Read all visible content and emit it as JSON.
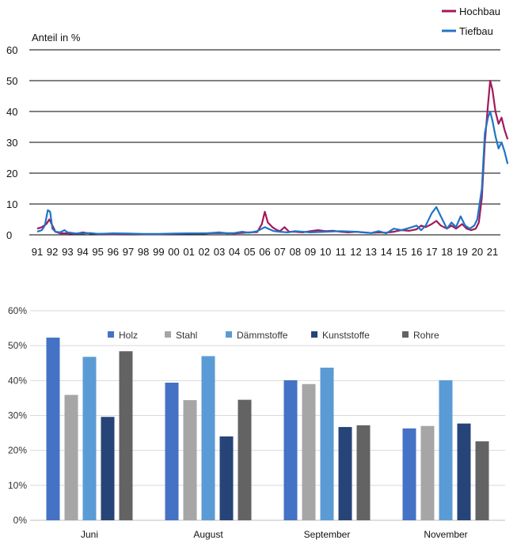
{
  "chart_data": [
    {
      "type": "line",
      "ylabel": "Anteil in %",
      "ylim": [
        0,
        60
      ],
      "yticks": [
        0,
        10,
        20,
        30,
        40,
        50,
        60
      ],
      "xticks": [
        "91",
        "92",
        "93",
        "94",
        "95",
        "96",
        "97",
        "98",
        "99",
        "00",
        "01",
        "02",
        "03",
        "04",
        "05",
        "06",
        "07",
        "08",
        "09",
        "10",
        "11",
        "12",
        "13",
        "14",
        "15",
        "16",
        "17",
        "18",
        "19",
        "20",
        "21"
      ],
      "grid": true,
      "legend_position": "top-right",
      "series": [
        {
          "name": "Hochbau",
          "color": "#a3195b",
          "points": [
            [
              0,
              2
            ],
            [
              0.3,
              2.5
            ],
            [
              0.6,
              3.5
            ],
            [
              0.8,
              5
            ],
            [
              1,
              3
            ],
            [
              1.2,
              1
            ],
            [
              1.5,
              0.5
            ],
            [
              2,
              0.5
            ],
            [
              2.5,
              0.3
            ],
            [
              3,
              0.8
            ],
            [
              3.5,
              0.4
            ],
            [
              4,
              0.3
            ],
            [
              5,
              0.2
            ],
            [
              6,
              0.3
            ],
            [
              7,
              0.2
            ],
            [
              8,
              0.2
            ],
            [
              9,
              0.3
            ],
            [
              10,
              0.4
            ],
            [
              11,
              0.5
            ],
            [
              12,
              0.6
            ],
            [
              13,
              0.5
            ],
            [
              14,
              0.8
            ],
            [
              14.5,
              0.9
            ],
            [
              14.8,
              3.5
            ],
            [
              15,
              7.5
            ],
            [
              15.2,
              4
            ],
            [
              15.5,
              2.5
            ],
            [
              15.8,
              1.5
            ],
            [
              16,
              1.2
            ],
            [
              16.3,
              2.5
            ],
            [
              16.6,
              1
            ],
            [
              17,
              1
            ],
            [
              17.5,
              0.8
            ],
            [
              18,
              1.2
            ],
            [
              18.5,
              1.5
            ],
            [
              19,
              1.2
            ],
            [
              19.5,
              1.3
            ],
            [
              20,
              1
            ],
            [
              20.5,
              0.8
            ],
            [
              21,
              1
            ],
            [
              21.5,
              0.8
            ],
            [
              22,
              0.6
            ],
            [
              22.5,
              0.8
            ],
            [
              23,
              0.7
            ],
            [
              23.5,
              1
            ],
            [
              24,
              1.5
            ],
            [
              24.5,
              1.3
            ],
            [
              25,
              1.8
            ],
            [
              25.3,
              3
            ],
            [
              25.6,
              2.5
            ],
            [
              26,
              3.5
            ],
            [
              26.3,
              4.5
            ],
            [
              26.6,
              3
            ],
            [
              27,
              2
            ],
            [
              27.3,
              3
            ],
            [
              27.6,
              2
            ],
            [
              28,
              3.5
            ],
            [
              28.3,
              2
            ],
            [
              28.6,
              1.5
            ],
            [
              28.9,
              2
            ],
            [
              29.1,
              4
            ],
            [
              29.3,
              12
            ],
            [
              29.5,
              30
            ],
            [
              29.7,
              42
            ],
            [
              29.85,
              50
            ],
            [
              30,
              47
            ],
            [
              30.2,
              40
            ],
            [
              30.4,
              36
            ],
            [
              30.6,
              38
            ],
            [
              30.8,
              34
            ],
            [
              31,
              31
            ]
          ]
        },
        {
          "name": "Tiefbau",
          "color": "#1f75c7",
          "points": [
            [
              0,
              1
            ],
            [
              0.3,
              1.5
            ],
            [
              0.5,
              3
            ],
            [
              0.7,
              8
            ],
            [
              0.85,
              7.5
            ],
            [
              1,
              2
            ],
            [
              1.2,
              1
            ],
            [
              1.5,
              0.8
            ],
            [
              1.8,
              1.5
            ],
            [
              2,
              0.8
            ],
            [
              2.5,
              0.5
            ],
            [
              3,
              0.4
            ],
            [
              3.5,
              0.6
            ],
            [
              4,
              0.3
            ],
            [
              5,
              0.5
            ],
            [
              6,
              0.4
            ],
            [
              7,
              0.3
            ],
            [
              8,
              0.3
            ],
            [
              9,
              0.4
            ],
            [
              10,
              0.5
            ],
            [
              11,
              0.4
            ],
            [
              12,
              0.8
            ],
            [
              12.5,
              0.5
            ],
            [
              13,
              0.6
            ],
            [
              13.5,
              1
            ],
            [
              14,
              0.7
            ],
            [
              14.5,
              1.2
            ],
            [
              15,
              2.5
            ],
            [
              15.3,
              1.8
            ],
            [
              15.6,
              1.2
            ],
            [
              16,
              1
            ],
            [
              16.5,
              0.8
            ],
            [
              17,
              1.2
            ],
            [
              18,
              0.8
            ],
            [
              19,
              1
            ],
            [
              20,
              1.2
            ],
            [
              21,
              1
            ],
            [
              22,
              0.6
            ],
            [
              22.5,
              1.2
            ],
            [
              23,
              0.5
            ],
            [
              23.5,
              2
            ],
            [
              24,
              1.5
            ],
            [
              24.5,
              2.2
            ],
            [
              25,
              3
            ],
            [
              25.3,
              1.5
            ],
            [
              25.6,
              3
            ],
            [
              26,
              7
            ],
            [
              26.3,
              9
            ],
            [
              26.6,
              6
            ],
            [
              27,
              2
            ],
            [
              27.3,
              4
            ],
            [
              27.6,
              2.5
            ],
            [
              27.9,
              6
            ],
            [
              28.2,
              3
            ],
            [
              28.5,
              2
            ],
            [
              28.8,
              3
            ],
            [
              29,
              5
            ],
            [
              29.3,
              15
            ],
            [
              29.5,
              33
            ],
            [
              29.7,
              38
            ],
            [
              29.85,
              40
            ],
            [
              30,
              37
            ],
            [
              30.2,
              32
            ],
            [
              30.4,
              28
            ],
            [
              30.6,
              30
            ],
            [
              30.8,
              27
            ],
            [
              31,
              23
            ]
          ]
        }
      ]
    },
    {
      "type": "bar",
      "categories": [
        "Juni",
        "August",
        "September",
        "November"
      ],
      "ylim": [
        0,
        60
      ],
      "yticks": [
        "0%",
        "10%",
        "20%",
        "30%",
        "40%",
        "50%",
        "60%"
      ],
      "legend_position": "top",
      "series": [
        {
          "name": "Holz",
          "color": "#4472c4",
          "values": [
            52.3,
            39.4,
            40.1,
            26.3
          ]
        },
        {
          "name": "Stahl",
          "color": "#a6a6a6",
          "values": [
            35.9,
            34.4,
            39.0,
            27.0
          ]
        },
        {
          "name": "Dämmstoffe",
          "color": "#5b9bd5",
          "values": [
            46.8,
            47.0,
            43.7,
            40.1
          ]
        },
        {
          "name": "Kunststoffe",
          "color": "#264478",
          "values": [
            29.6,
            24.0,
            26.7,
            27.7
          ]
        },
        {
          "name": "Rohre",
          "color": "#636363",
          "values": [
            48.4,
            34.5,
            27.2,
            22.6
          ]
        }
      ]
    }
  ]
}
